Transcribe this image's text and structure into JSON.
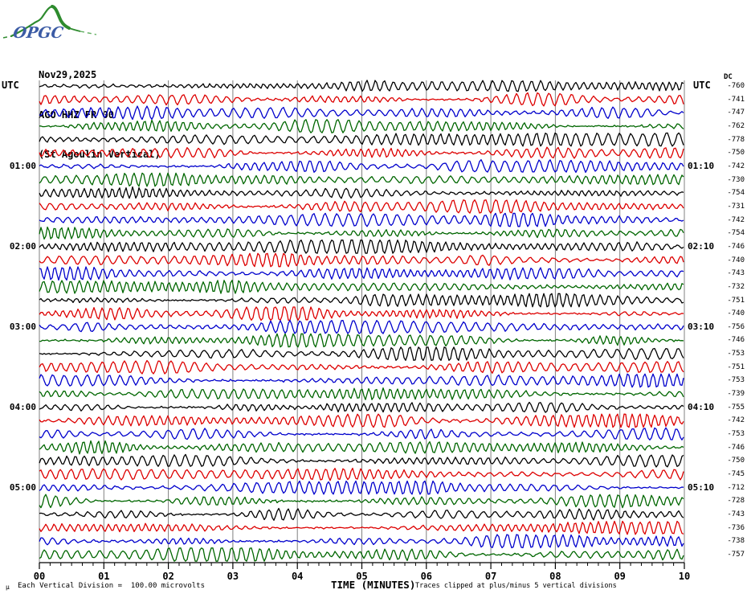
{
  "logo": {
    "text": "OPGC"
  },
  "header": {
    "date": "Nov29,2025",
    "station": "AGO HHZ FR 00",
    "subtitle": "(St Agoulin Vertical)"
  },
  "axis_headers": {
    "left_utc": "UTC",
    "right_utc": "UTC",
    "dc": "DC"
  },
  "footer": {
    "mu": "µ",
    "division_note": "Each Vertical Division =  100.00 microvolts",
    "xlabel": "TIME (MINUTES)",
    "clip_note": "Traces clipped at plus/minus 5 vertical divisions"
  },
  "chart_data": {
    "type": "line",
    "subtype": "helicorder-seismogram",
    "title": "AGO HHZ FR 00 (St Agoulin Vertical) Nov29,2025",
    "xlabel": "TIME (MINUTES)",
    "x_axis": {
      "ticks": [
        "00",
        "01",
        "02",
        "03",
        "04",
        "05",
        "06",
        "07",
        "08",
        "09",
        "10"
      ],
      "minutes_per_line": 10,
      "minor_ticks_per_major": 6,
      "range_minutes": [
        0,
        10
      ]
    },
    "y_scale": {
      "microvolts_per_division": 100,
      "clip_divisions": 5,
      "note": "Traces clipped at plus/minus 5 vertical divisions"
    },
    "colors": {
      "cycle": [
        "#000000",
        "#dd0000",
        "#0000cc",
        "#006600"
      ],
      "cycle_names": [
        "black",
        "red",
        "blue",
        "green"
      ],
      "grid": "#808080",
      "axis": "#000000"
    },
    "legend_position": "none",
    "grid": "vertical-only",
    "rows": [
      {
        "start": "00:00",
        "dc": -760,
        "left_label": "",
        "right_label": ""
      },
      {
        "start": "00:10",
        "dc": -741,
        "left_label": "",
        "right_label": ""
      },
      {
        "start": "00:20",
        "dc": -747,
        "left_label": "",
        "right_label": ""
      },
      {
        "start": "00:30",
        "dc": -762,
        "left_label": "",
        "right_label": ""
      },
      {
        "start": "00:40",
        "dc": -778,
        "left_label": "",
        "right_label": ""
      },
      {
        "start": "00:50",
        "dc": -750,
        "left_label": "",
        "right_label": ""
      },
      {
        "start": "01:00",
        "dc": -742,
        "left_label": "01:00",
        "right_label": "01:10"
      },
      {
        "start": "01:10",
        "dc": -730,
        "left_label": "",
        "right_label": ""
      },
      {
        "start": "01:20",
        "dc": -754,
        "left_label": "",
        "right_label": ""
      },
      {
        "start": "01:30",
        "dc": -731,
        "left_label": "",
        "right_label": ""
      },
      {
        "start": "01:40",
        "dc": -742,
        "left_label": "",
        "right_label": ""
      },
      {
        "start": "01:50",
        "dc": -754,
        "left_label": "",
        "right_label": ""
      },
      {
        "start": "02:00",
        "dc": -746,
        "left_label": "02:00",
        "right_label": "02:10"
      },
      {
        "start": "02:10",
        "dc": -740,
        "left_label": "",
        "right_label": ""
      },
      {
        "start": "02:20",
        "dc": -743,
        "left_label": "",
        "right_label": ""
      },
      {
        "start": "02:30",
        "dc": -732,
        "left_label": "",
        "right_label": ""
      },
      {
        "start": "02:40",
        "dc": -751,
        "left_label": "",
        "right_label": ""
      },
      {
        "start": "02:50",
        "dc": -740,
        "left_label": "",
        "right_label": ""
      },
      {
        "start": "03:00",
        "dc": -756,
        "left_label": "03:00",
        "right_label": "03:10"
      },
      {
        "start": "03:10",
        "dc": -746,
        "left_label": "",
        "right_label": ""
      },
      {
        "start": "03:20",
        "dc": -753,
        "left_label": "",
        "right_label": ""
      },
      {
        "start": "03:30",
        "dc": -751,
        "left_label": "",
        "right_label": ""
      },
      {
        "start": "03:40",
        "dc": -753,
        "left_label": "",
        "right_label": ""
      },
      {
        "start": "03:50",
        "dc": -739,
        "left_label": "",
        "right_label": ""
      },
      {
        "start": "04:00",
        "dc": -755,
        "left_label": "04:00",
        "right_label": "04:10"
      },
      {
        "start": "04:10",
        "dc": -742,
        "left_label": "",
        "right_label": ""
      },
      {
        "start": "04:20",
        "dc": -753,
        "left_label": "",
        "right_label": ""
      },
      {
        "start": "04:30",
        "dc": -746,
        "left_label": "",
        "right_label": ""
      },
      {
        "start": "04:40",
        "dc": -750,
        "left_label": "",
        "right_label": ""
      },
      {
        "start": "04:50",
        "dc": -745,
        "left_label": "",
        "right_label": ""
      },
      {
        "start": "05:00",
        "dc": -712,
        "left_label": "05:00",
        "right_label": "05:10"
      },
      {
        "start": "05:10",
        "dc": -728,
        "left_label": "",
        "right_label": ""
      },
      {
        "start": "05:20",
        "dc": -743,
        "left_label": "",
        "right_label": ""
      },
      {
        "start": "05:30",
        "dc": -736,
        "left_label": "",
        "right_label": ""
      },
      {
        "start": "05:40",
        "dc": -738,
        "left_label": "",
        "right_label": ""
      },
      {
        "start": "05:50",
        "dc": -757,
        "left_label": "",
        "right_label": ""
      }
    ]
  }
}
